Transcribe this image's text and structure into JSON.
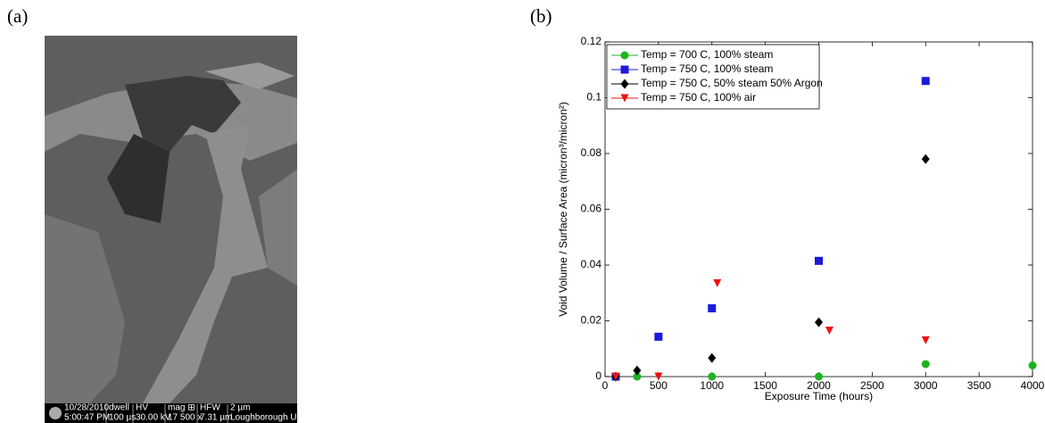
{
  "panel_labels": [
    "(a)",
    "(b)"
  ],
  "sem_info_bar": {
    "row1": [
      "10/28/2010",
      "dwell",
      "HV",
      "mag ⊞",
      "HFW",
      "2 µm"
    ],
    "row2": [
      "5:00:47 PM",
      "100 µs",
      "30.00 kV",
      "17 500 x",
      "7.31 µm",
      "Loughborough University"
    ]
  },
  "chart_data": {
    "type": "scatter",
    "xlabel": "Exposure Time (hours)",
    "ylabel": "Void Volume / Surface Area (micron³/micron²)",
    "xlim": [
      0,
      4000
    ],
    "ylim": [
      0,
      0.12
    ],
    "xticks": [
      0,
      500,
      1000,
      1500,
      2000,
      2500,
      3000,
      3500,
      4000
    ],
    "yticks": [
      0,
      0.02,
      0.04,
      0.06,
      0.08,
      0.1,
      0.12
    ],
    "grid": false,
    "legend": "upper-left",
    "series": [
      {
        "name": "Temp = 700 C, 100% steam",
        "color": "#1db31d",
        "marker": "circle",
        "x": [
          100,
          300,
          1000,
          2000,
          3000,
          4000
        ],
        "values": [
          0,
          0,
          0,
          0,
          0.0045,
          0.004
        ]
      },
      {
        "name": "Temp = 750 C, 100% steam",
        "color": "#1a1adb",
        "marker": "square",
        "x": [
          100,
          500,
          1000,
          2000,
          3000
        ],
        "values": [
          0,
          0.0143,
          0.0245,
          0.0415,
          0.106
        ]
      },
      {
        "name": "Temp = 750 C, 50% steam 50% Argon",
        "color": "#000000",
        "marker": "diamond",
        "x": [
          100,
          300,
          1000,
          2000,
          3000
        ],
        "values": [
          0,
          0.0022,
          0.0067,
          0.0195,
          0.078
        ]
      },
      {
        "name": "Temp = 750 C, 100% air",
        "color": "#ee1111",
        "marker": "triangle-down",
        "x": [
          100,
          500,
          1050,
          2100,
          3000
        ],
        "values": [
          0,
          0,
          0.0335,
          0.0165,
          0.013
        ]
      }
    ]
  }
}
